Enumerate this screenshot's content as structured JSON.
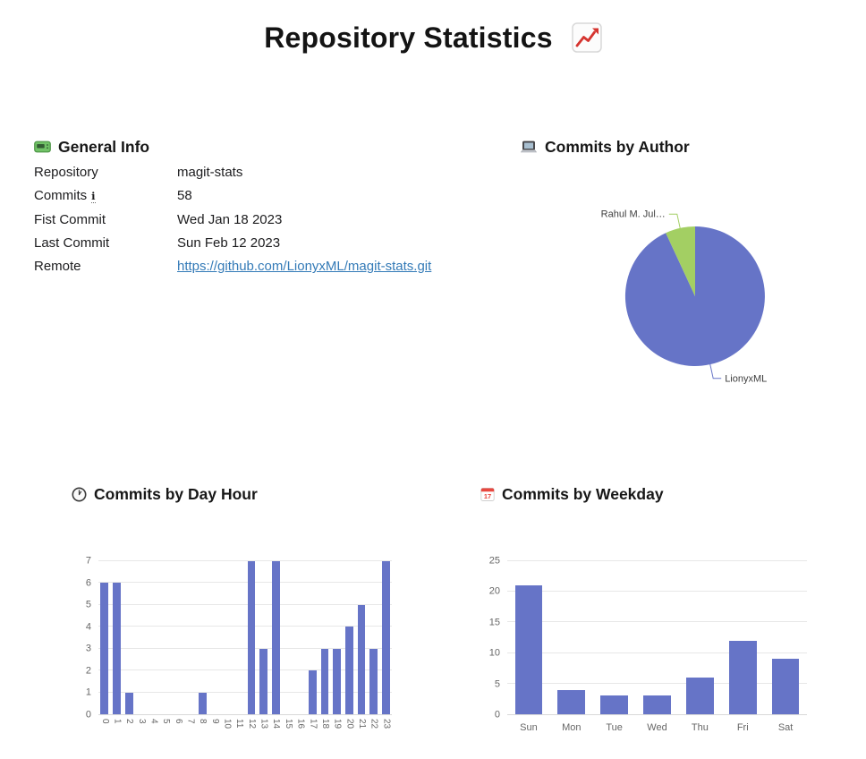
{
  "page": {
    "title": "Repository Statistics",
    "title_icon": "chart-increasing-icon"
  },
  "general_info": {
    "icon": "pager-icon",
    "title": "General Info",
    "rows": [
      {
        "label": "Repository",
        "value": "magit-stats"
      },
      {
        "label": "Commits",
        "info_icon": "ℹ",
        "value": "58"
      },
      {
        "label": "Fist Commit",
        "value": "Wed Jan 18 2023"
      },
      {
        "label": "Last Commit",
        "value": "Sun Feb 12 2023"
      },
      {
        "label": "Remote",
        "value": "https://github.com/LionyxML/magit-stats.git"
      }
    ]
  },
  "commits_by_author": {
    "icon": "laptop-icon",
    "title": "Commits by Author"
  },
  "commits_by_day_hour": {
    "icon": "clock-icon",
    "title": "Commits by Day Hour"
  },
  "commits_by_weekday": {
    "icon": "calendar-icon",
    "title": "Commits by Weekday"
  },
  "colors": {
    "bar": "#6674c7",
    "pie_blue": "#6674c7",
    "pie_green": "#a3cf63",
    "grid": "#e7e7e7",
    "axis_text": "#666666",
    "link": "#337ab7"
  },
  "chart_data": [
    {
      "type": "pie",
      "title": "Commits by Author",
      "labels": [
        "LionyxML",
        "Rahul M. Jul…"
      ],
      "values": [
        54,
        4
      ],
      "colors": [
        "#6674c7",
        "#a3cf63"
      ],
      "legend_position": "none",
      "label_style": "callout"
    },
    {
      "type": "bar",
      "title": "Commits by Day Hour",
      "categories": [
        "0",
        "1",
        "2",
        "3",
        "4",
        "5",
        "6",
        "7",
        "8",
        "9",
        "10",
        "11",
        "12",
        "13",
        "14",
        "15",
        "16",
        "17",
        "18",
        "19",
        "20",
        "21",
        "22",
        "23"
      ],
      "values": [
        6,
        6,
        1,
        0,
        0,
        0,
        0,
        0,
        1,
        0,
        0,
        0,
        7,
        3,
        7,
        0,
        0,
        2,
        3,
        3,
        4,
        5,
        3,
        7
      ],
      "ylim": [
        0,
        7
      ],
      "yticks": [
        0,
        1,
        2,
        3,
        4,
        5,
        6,
        7
      ],
      "x_label_rotation": 90,
      "grid": true,
      "legend_position": "none"
    },
    {
      "type": "bar",
      "title": "Commits by Weekday",
      "categories": [
        "Sun",
        "Mon",
        "Tue",
        "Wed",
        "Thu",
        "Fri",
        "Sat"
      ],
      "values": [
        21,
        4,
        3,
        3,
        6,
        12,
        9
      ],
      "ylim": [
        0,
        25
      ],
      "yticks": [
        0,
        5,
        10,
        15,
        20,
        25
      ],
      "x_label_rotation": 0,
      "grid": true,
      "legend_position": "none"
    }
  ]
}
